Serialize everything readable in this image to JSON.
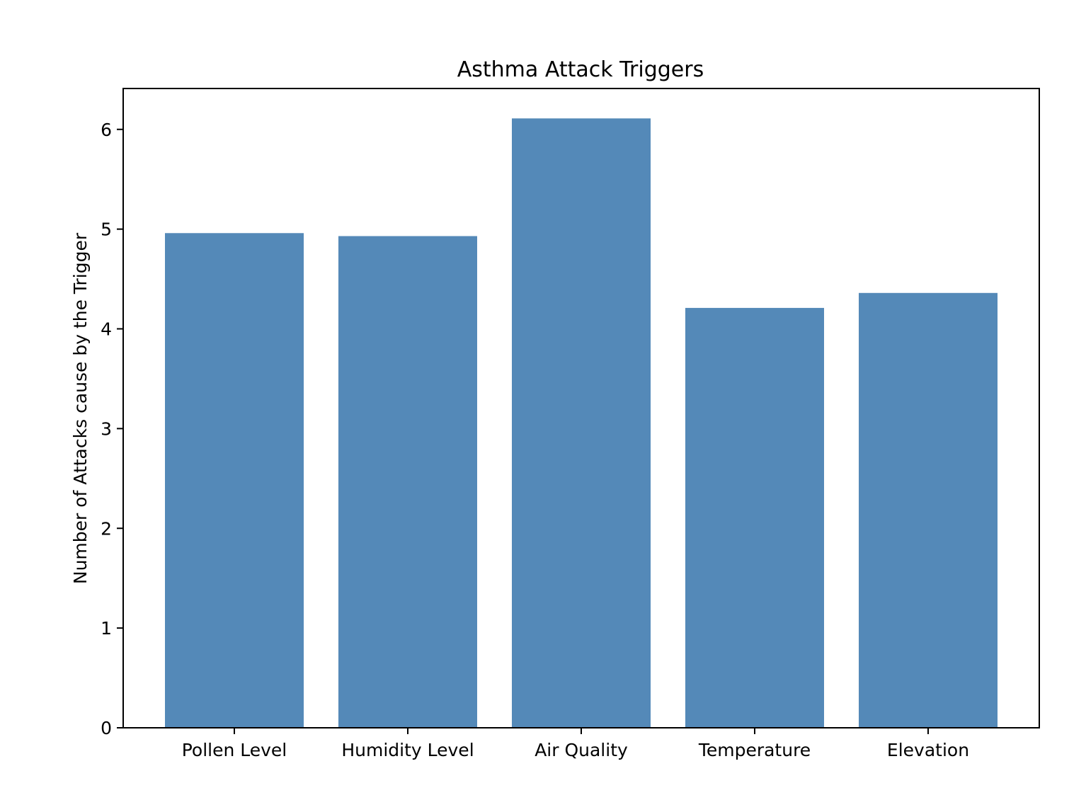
{
  "chart_data": {
    "type": "bar",
    "title": "Asthma Attack Triggers",
    "xlabel": "",
    "ylabel": "Number of Attacks cause by the Trigger",
    "categories": [
      "Pollen Level",
      "Humidity Level",
      "Air Quality",
      "Temperature",
      "Elevation"
    ],
    "values": [
      4.96,
      4.93,
      6.11,
      4.21,
      4.36
    ],
    "ylim": [
      0,
      6.41
    ],
    "yticks": [
      "0",
      "1",
      "2",
      "3",
      "4",
      "5",
      "6"
    ],
    "bar_color": "#5489b8",
    "grid": false,
    "legend": "none"
  }
}
